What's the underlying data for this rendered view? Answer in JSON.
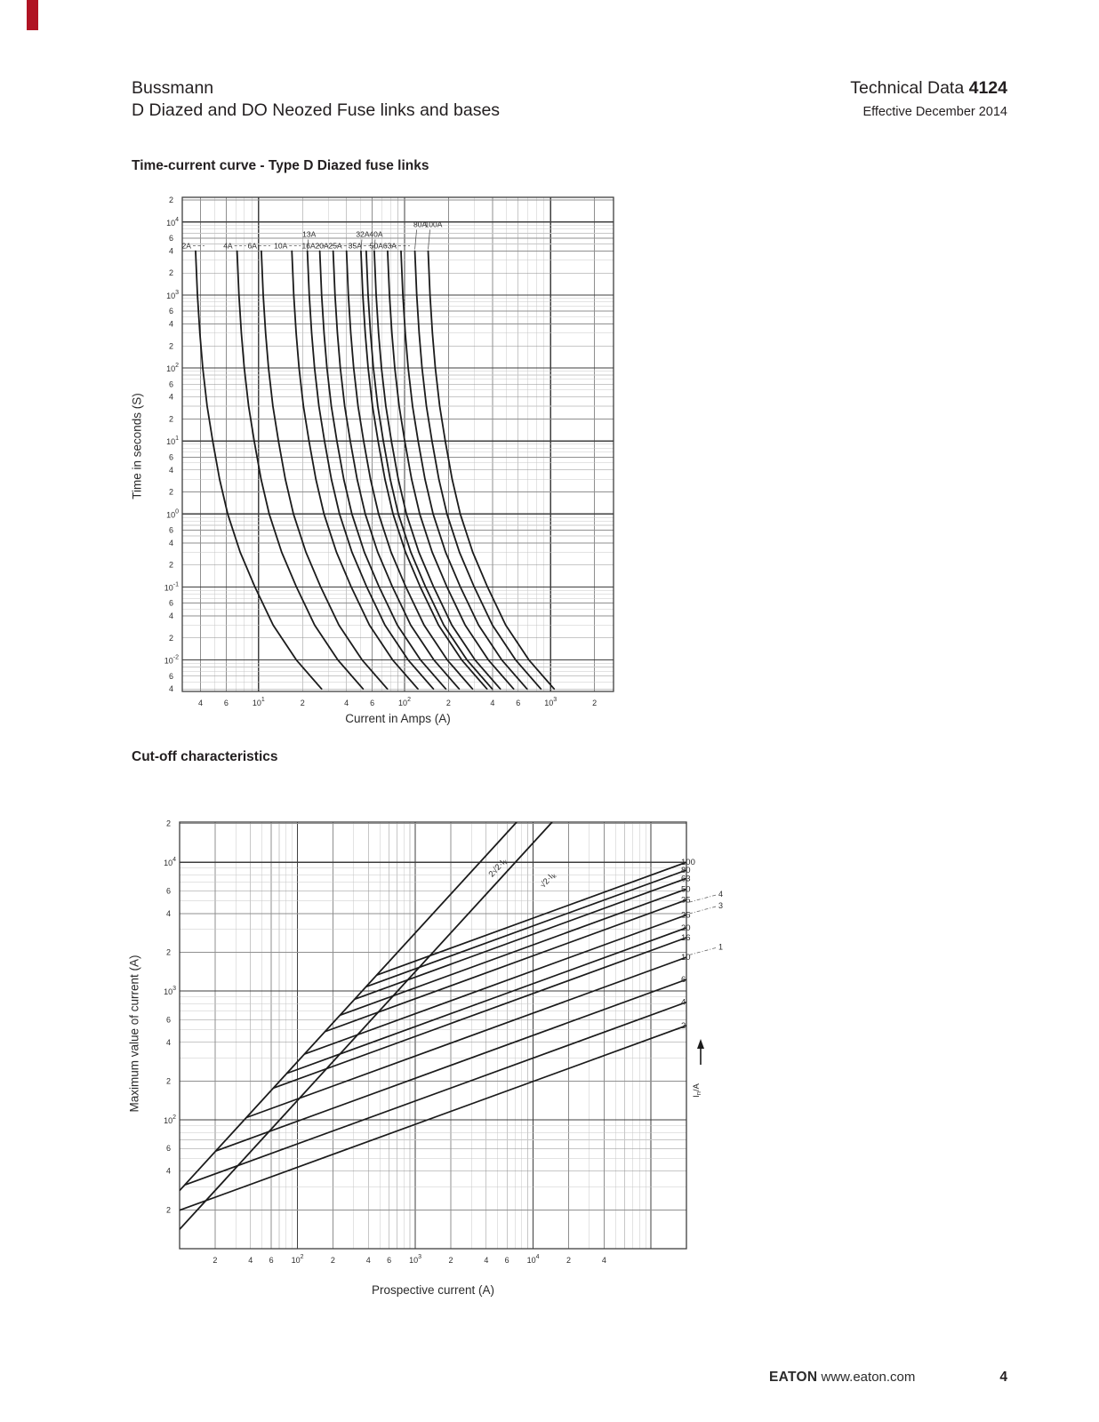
{
  "header": {
    "brand": "Bussmann",
    "doc_title": "D Diazed and DO Neozed Fuse links and bases",
    "tech_label": "Technical Data ",
    "tech_number": "4124",
    "effective": "Effective December 2014"
  },
  "sections": {
    "time_current_title": "Time-current curve - Type D Diazed fuse links",
    "cutoff_title": "Cut-off characteristics"
  },
  "footer": {
    "brand": "EATON",
    "url": "www.eaton.com",
    "page": "4"
  },
  "colors": {
    "ribbon_red": "#b01323",
    "ink": "#231f20",
    "grid_major": "#3f3f3f",
    "grid_mid": "#8f8f8f",
    "grid_minor": "#c7c7c7",
    "curve": "#1b1b1b"
  },
  "chart_data": [
    {
      "type": "line",
      "title": "Time-current curve - Type D Diazed fuse links",
      "xlabel": "Current in Amps (A)",
      "ylabel": "Time in seconds (S)",
      "x_scale": "log",
      "y_scale": "log",
      "xlim": [
        3,
        2700
      ],
      "ylim": [
        0.0037,
        21800
      ],
      "grid": "log graph paper, minor lines 2-9 each decade",
      "shape_times": [
        4000,
        1000,
        300,
        100,
        30,
        10,
        3,
        1,
        0.3,
        0.1,
        0.03,
        0.01,
        0.004
      ],
      "shape_current_multiples": [
        1,
        1.03,
        1.07,
        1.12,
        1.2,
        1.31,
        1.46,
        1.66,
        2.02,
        2.55,
        3.4,
        4.9,
        7.3
      ],
      "series": [
        {
          "label": "2A",
          "amps": 2,
          "start_multiple": 1.85,
          "label_row": "main"
        },
        {
          "label": "4A",
          "amps": 4,
          "start_multiple": 1.78,
          "label_row": "main"
        },
        {
          "label": "6A",
          "amps": 6,
          "start_multiple": 1.74,
          "label_row": "main"
        },
        {
          "label": "10A",
          "amps": 10,
          "start_multiple": 1.69,
          "label_row": "main"
        },
        {
          "label": "13A",
          "amps": 13,
          "start_multiple": 1.66,
          "label_row": "upper"
        },
        {
          "label": "16A",
          "amps": 16,
          "start_multiple": 1.64,
          "label_row": "main"
        },
        {
          "label": "20A",
          "amps": 20,
          "start_multiple": 1.62,
          "label_row": "main"
        },
        {
          "label": "25A",
          "amps": 25,
          "start_multiple": 1.6,
          "label_row": "main"
        },
        {
          "label": "32A",
          "amps": 32,
          "start_multiple": 1.57,
          "label_row": "upper"
        },
        {
          "label": "35A",
          "amps": 35,
          "start_multiple": 1.56,
          "label_row": "main"
        },
        {
          "label": "40A",
          "amps": 40,
          "start_multiple": 1.55,
          "label_row": "upper"
        },
        {
          "label": "50A",
          "amps": 50,
          "start_multiple": 1.53,
          "label_row": "main"
        },
        {
          "label": "63A",
          "amps": 63,
          "start_multiple": 1.5,
          "label_row": "main"
        },
        {
          "label": "80A",
          "amps": 80,
          "start_multiple": 1.47,
          "label_row": "top"
        },
        {
          "label": "100A",
          "amps": 100,
          "start_multiple": 1.45,
          "label_row": "top"
        }
      ]
    },
    {
      "type": "line",
      "title": "Cut-off characteristics",
      "xlabel": "Prospective current (A)",
      "ylabel": "Maximum value of current (A)",
      "x_scale": "log",
      "y_scale": "log",
      "xlim": [
        10,
        200000
      ],
      "ylim": [
        10,
        20500
      ],
      "x_label_max": 40000,
      "right_axis_label": {
        "base": "I",
        "sub": "n",
        "rest": "/A"
      },
      "asymptotes": [
        {
          "text": "2√2·I",
          "sub": "k",
          "factor": 2.828
        },
        {
          "text": "√2·I",
          "sub": "k",
          "factor": 1.414
        }
      ],
      "slope_log": 0.3333,
      "series": [
        {
          "label": "100",
          "rated_amps": 100,
          "end_value": 10000
        },
        {
          "label": "80",
          "rated_amps": 80,
          "end_value": 8700
        },
        {
          "label": "63",
          "rated_amps": 63,
          "end_value": 7500
        },
        {
          "label": "50",
          "rated_amps": 50,
          "end_value": 6200
        },
        {
          "label": "35",
          "rated_amps": 35,
          "end_value": 5100
        },
        {
          "label": "25",
          "rated_amps": 25,
          "end_value": 3900
        },
        {
          "label": "20",
          "rated_amps": 20,
          "end_value": 3100
        },
        {
          "label": "16",
          "rated_amps": 16,
          "end_value": 2600
        },
        {
          "label": "10",
          "rated_amps": 10,
          "end_value": 1830
        },
        {
          "label": "6",
          "rated_amps": 6,
          "end_value": 1230
        },
        {
          "label": "4",
          "rated_amps": 4,
          "end_value": 820
        },
        {
          "label": "2",
          "rated_amps": 2,
          "end_value": 540
        }
      ],
      "secondary_labels": [
        {
          "label": "4",
          "value": 5650
        },
        {
          "label": "3",
          "value": 4600
        },
        {
          "label": "1",
          "value": 2200
        }
      ]
    }
  ]
}
